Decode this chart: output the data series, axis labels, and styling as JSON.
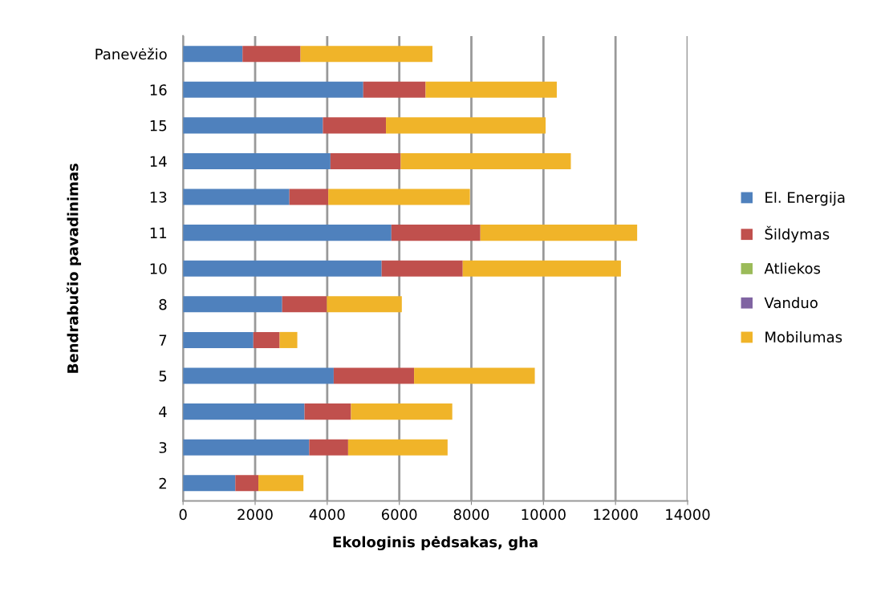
{
  "chart_data": {
    "type": "bar",
    "orientation": "horizontal",
    "stacked": true,
    "xlabel": "Ekologinis pėdsakas, gha",
    "ylabel": "Bendrabučio pavadinimas",
    "categories": [
      "Panevėžio",
      "16",
      "15",
      "14",
      "13",
      "11",
      "10",
      "8",
      "7",
      "5",
      "4",
      "3",
      "2"
    ],
    "series": [
      {
        "name": "El. Energija",
        "color": "#4f81bd",
        "values": [
          1650,
          5000,
          3880,
          4090,
          2950,
          5780,
          5510,
          2750,
          1950,
          4180,
          3370,
          3500,
          1450
        ]
      },
      {
        "name": "Šildymas",
        "color": "#c0504d",
        "values": [
          1610,
          1730,
          1750,
          1950,
          1080,
          2470,
          2250,
          1240,
          730,
          2230,
          1290,
          1080,
          640
        ]
      },
      {
        "name": "Atliekos",
        "color": "#9bbb59",
        "values": [
          0,
          0,
          0,
          0,
          0,
          0,
          0,
          0,
          0,
          0,
          0,
          0,
          0
        ]
      },
      {
        "name": "Vanduo",
        "color": "#8064a2",
        "values": [
          0,
          0,
          0,
          0,
          0,
          0,
          0,
          0,
          0,
          0,
          0,
          0,
          0
        ]
      },
      {
        "name": "Mobilumas",
        "color": "#f0b429",
        "values": [
          3660,
          3640,
          4430,
          4720,
          3930,
          4350,
          4390,
          2080,
          490,
          3350,
          2810,
          2760,
          1250
        ]
      }
    ],
    "xlim": [
      0,
      14000
    ],
    "xticks": [
      0,
      2000,
      4000,
      6000,
      8000,
      10000,
      12000,
      14000
    ],
    "grid": "x",
    "legend": "right"
  }
}
